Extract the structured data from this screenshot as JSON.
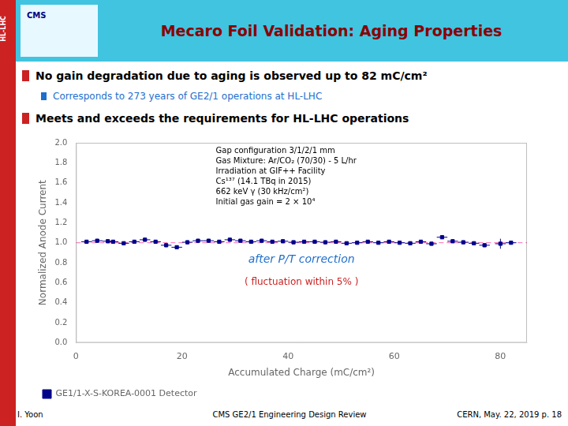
{
  "slide": {
    "sidebar_label": "HL-LHC",
    "sidebar_color": "#CC2222",
    "logo_label": "CMS",
    "header_color": "#40C4E0",
    "title_color": "#8B0000",
    "bullets": [
      {
        "kind": "main",
        "text": "No gain degradation due to aging is observed up to 82 mC/cm²",
        "marker_color": "#CC2222",
        "text_color": "#000000"
      },
      {
        "kind": "sub",
        "text": "Corresponds to 273 years of GE2/1 operations at HL-LHC",
        "marker_color": "#1E6FCC",
        "text_color": "#1E6FCC"
      },
      {
        "kind": "main",
        "text": "Meets and exceeds the requirements for HL-LHC operations",
        "marker_color": "#CC2222",
        "text_color": "#000000"
      }
    ],
    "footer": [
      "I. Yoon",
      "CMS GE2/1 Engineering Design Review",
      "CERN, May. 22,  2019  p. 18"
    ]
  },
  "chart_data": {
    "type": "scatter",
    "title": "Mecaro Foil Validation: Aging Properties",
    "xlabel": "Accumulated Charge (mC/cm²)",
    "ylabel": "Normalized Anode Current",
    "x": [
      2,
      4,
      6,
      7,
      9,
      11,
      13,
      15,
      17,
      19,
      21,
      23,
      25,
      27,
      29,
      31,
      33,
      35,
      37,
      39,
      41,
      43,
      45,
      47,
      49,
      51,
      53,
      55,
      57,
      59,
      61,
      63,
      65,
      67,
      69,
      71,
      73,
      75,
      77,
      80,
      82
    ],
    "series": [
      {
        "name": "GE1/1-X-S-KOREA-0001 Detector",
        "color": "#00008B",
        "marker": "square",
        "values": [
          1.01,
          1.02,
          1.015,
          1.01,
          0.995,
          1.01,
          1.03,
          1.01,
          0.975,
          0.955,
          1.005,
          1.02,
          1.02,
          1.01,
          1.03,
          1.02,
          1.01,
          1.02,
          1.01,
          1.015,
          1.005,
          1.01,
          1.01,
          1.005,
          1.01,
          0.995,
          1.0,
          1.01,
          1.0,
          1.01,
          1.0,
          0.995,
          1.01,
          0.99,
          1.055,
          1.015,
          1.005,
          0.995,
          0.975,
          0.99,
          1.0
        ],
        "yerr": [
          0.018,
          0.018,
          0.018,
          0.018,
          0.018,
          0.018,
          0.018,
          0.018,
          0.018,
          0.018,
          0.018,
          0.018,
          0.018,
          0.018,
          0.018,
          0.018,
          0.018,
          0.018,
          0.018,
          0.018,
          0.018,
          0.018,
          0.018,
          0.018,
          0.018,
          0.018,
          0.018,
          0.018,
          0.018,
          0.018,
          0.018,
          0.018,
          0.018,
          0.018,
          0.018,
          0.018,
          0.018,
          0.018,
          0.018,
          0.05,
          0.018
        ],
        "xerr": [
          1,
          1,
          1,
          1,
          1,
          1,
          1,
          1,
          1,
          1,
          1,
          1,
          1,
          1,
          1,
          1,
          1,
          1,
          1,
          1,
          1,
          1,
          1,
          1,
          1,
          1,
          1,
          1,
          1,
          1,
          1,
          1,
          1,
          1,
          1,
          1,
          1,
          1,
          1,
          1,
          1
        ]
      }
    ],
    "xlim": [
      0,
      85
    ],
    "ylim": [
      0,
      2
    ],
    "xticks": [
      0,
      20,
      40,
      60,
      80
    ],
    "yticks": [
      {
        "value": 0,
        "label": "0.0"
      },
      0.2,
      0.4,
      0.6,
      0.8,
      {
        "value": 1,
        "label": "1.0"
      },
      1.2,
      1.4,
      1.6,
      1.8,
      {
        "value": 2,
        "label": "2.0"
      }
    ],
    "grid": false,
    "legend": "lower left",
    "reference_lines": [
      {
        "value": 1,
        "color": "#FF69B4",
        "line_style": "dashed"
      }
    ],
    "info": [
      "Gap configuration 3/1/2/1 mm",
      "Gas Mixture: Ar/CO₂ (70/30) - 5 L/hr",
      "Irradiation at GIF++ Facility",
      "Cs¹³⁷ (14.1 TBq in 2015)",
      "662 keV γ (30 kHz/cm²)",
      "Initial gas gain = 2 × 10⁴"
    ],
    "annotations": [
      {
        "text": "after P/T correction",
        "color": "#1E6FCC",
        "style": "italic"
      },
      {
        "text": "( fluctuation within 5% )",
        "color": "#CC2222",
        "style": "normal"
      }
    ]
  }
}
